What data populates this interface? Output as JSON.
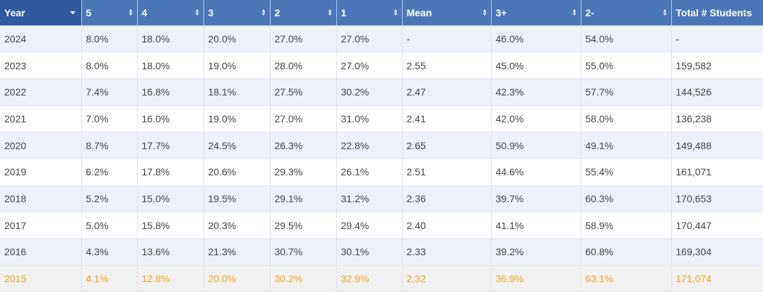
{
  "table": {
    "headers": [
      "Year",
      "5",
      "4",
      "3",
      "2",
      "1",
      "Mean",
      "3+",
      "2-",
      "Total # Students"
    ],
    "rows": [
      [
        "2024",
        "8.0%",
        "18.0%",
        "20.0%",
        "27.0%",
        "27.0%",
        "-",
        "46.0%",
        "54.0%",
        "-"
      ],
      [
        "2023",
        "8.0%",
        "18.0%",
        "19.0%",
        "28.0%",
        "27.0%",
        "2.55",
        "45.0%",
        "55.0%",
        "159,582"
      ],
      [
        "2022",
        "7.4%",
        "16.8%",
        "18.1%",
        "27.5%",
        "30.2%",
        "2.47",
        "42.3%",
        "57.7%",
        "144,526"
      ],
      [
        "2021",
        "7.0%",
        "16.0%",
        "19.0%",
        "27.0%",
        "31.0%",
        "2.41",
        "42.0%",
        "58.0%",
        "136,238"
      ],
      [
        "2020",
        "8.7%",
        "17.7%",
        "24.5%",
        "26.3%",
        "22.8%",
        "2.65",
        "50.9%",
        "49.1%",
        "149,488"
      ],
      [
        "2019",
        "6.2%",
        "17.8%",
        "20.6%",
        "29.3%",
        "26.1%",
        "2.51",
        "44.6%",
        "55.4%",
        "161,071"
      ],
      [
        "2018",
        "5.2%",
        "15.0%",
        "19.5%",
        "29.1%",
        "31.2%",
        "2.36",
        "39.7%",
        "60.3%",
        "170,653"
      ],
      [
        "2017",
        "5.0%",
        "15.8%",
        "20.3%",
        "29.5%",
        "29.4%",
        "2.40",
        "41.1%",
        "58.9%",
        "170,447"
      ],
      [
        "2016",
        "4.3%",
        "13.6%",
        "21.3%",
        "30.7%",
        "30.1%",
        "2.33",
        "39.2%",
        "60.8%",
        "169,304"
      ],
      [
        "2015",
        "4.1%",
        "12.8%",
        "20.0%",
        "30.2%",
        "32.9%",
        "2.32",
        "36.9%",
        "63.1%",
        "171,074"
      ]
    ]
  },
  "icons": {
    "year_header": "caret-down-icon",
    "other_headers": "sort-icon"
  },
  "colors": {
    "header_bg": "#4a77b8",
    "year_header_bg": "#2f5aa0",
    "stripe_bg": "#edf1fa",
    "highlight_text": "#f0a521",
    "highlight_bg": "#f1f1f1"
  }
}
